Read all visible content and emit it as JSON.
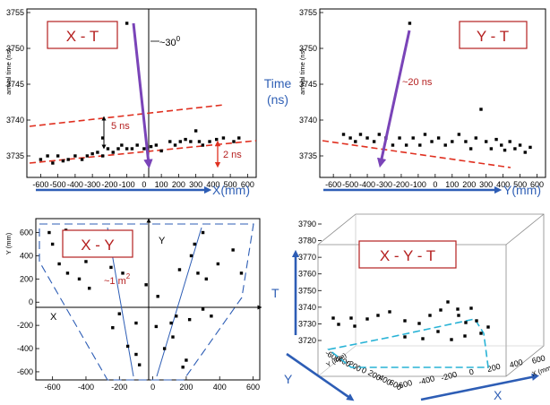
{
  "chart_data": [
    {
      "type": "scatter",
      "panel": "X - T",
      "xlim": [
        -680,
        650
      ],
      "ylim": [
        3732,
        3755.5
      ],
      "xticks": [
        "-600",
        "-500",
        "-400",
        "-300",
        "-200",
        "-100",
        "0",
        "100",
        "200",
        "300",
        "400",
        "500",
        "600"
      ],
      "yticks": [
        "3735",
        "3740",
        "3745",
        "3750",
        "3755"
      ],
      "ylabel": "arrival time (ns)",
      "axis_label": "X(mm)",
      "box_label": "X - T",
      "angle_label": "~30",
      "angle_sup": "0",
      "width_label": "5 ns",
      "offset_label": "2 ns",
      "points": [
        [
          -100,
          3753.5
        ],
        [
          -600,
          3734.5
        ],
        [
          -560,
          3735
        ],
        [
          -530,
          3734
        ],
        [
          -500,
          3735
        ],
        [
          -470,
          3734.3
        ],
        [
          -440,
          3734.5
        ],
        [
          -400,
          3735
        ],
        [
          -360,
          3734.5
        ],
        [
          -330,
          3735
        ],
        [
          -300,
          3735.3
        ],
        [
          -270,
          3735.5
        ],
        [
          -240,
          3735
        ],
        [
          -210,
          3736
        ],
        [
          -180,
          3735.5
        ],
        [
          -150,
          3736
        ],
        [
          -130,
          3736.5
        ],
        [
          -100,
          3736
        ],
        [
          -70,
          3736
        ],
        [
          -40,
          3736.5
        ],
        [
          0,
          3736
        ],
        [
          40,
          3736.3
        ],
        [
          70,
          3736.5
        ],
        [
          100,
          3735.7
        ],
        [
          150,
          3737
        ],
        [
          180,
          3736.5
        ],
        [
          210,
          3737
        ],
        [
          240,
          3737.3
        ],
        [
          270,
          3737
        ],
        [
          300,
          3738.5
        ],
        [
          320,
          3737
        ],
        [
          340,
          3736.5
        ],
        [
          380,
          3737
        ],
        [
          420,
          3737.3
        ],
        [
          460,
          3737.5
        ],
        [
          520,
          3737
        ],
        [
          550,
          3737.5
        ],
        [
          -240,
          3737.5
        ]
      ]
    },
    {
      "type": "scatter",
      "panel": "Y - T",
      "xlim": [
        -680,
        650
      ],
      "ylim": [
        3732,
        3755.5
      ],
      "xticks": [
        "-600",
        "-500",
        "-400",
        "-300",
        "-200",
        "-100",
        "0",
        "100",
        "200",
        "300",
        "400",
        "500",
        "600"
      ],
      "yticks": [
        "3735",
        "3740",
        "3745",
        "3750",
        "3755"
      ],
      "ylabel": "arrival time (ns)",
      "axis_label": "Y(mm)",
      "box_label": "Y - T",
      "time_label": "~20 ns",
      "points": [
        [
          -150,
          3753.5
        ],
        [
          -540,
          3738
        ],
        [
          -500,
          3737.5
        ],
        [
          -470,
          3737
        ],
        [
          -440,
          3738
        ],
        [
          -400,
          3737.5
        ],
        [
          -360,
          3737
        ],
        [
          -330,
          3738
        ],
        [
          -290,
          3737.5
        ],
        [
          -250,
          3736.5
        ],
        [
          -210,
          3737.5
        ],
        [
          -170,
          3736.5
        ],
        [
          -130,
          3737.5
        ],
        [
          -90,
          3736.5
        ],
        [
          -60,
          3738
        ],
        [
          -20,
          3737
        ],
        [
          20,
          3737.5
        ],
        [
          60,
          3736.5
        ],
        [
          100,
          3737
        ],
        [
          140,
          3738
        ],
        [
          180,
          3737
        ],
        [
          210,
          3736
        ],
        [
          240,
          3737.5
        ],
        [
          270,
          3741.5
        ],
        [
          300,
          3737
        ],
        [
          330,
          3736
        ],
        [
          360,
          3737.3
        ],
        [
          390,
          3736.5
        ],
        [
          410,
          3735.8
        ],
        [
          440,
          3737
        ],
        [
          470,
          3736
        ],
        [
          500,
          3736.5
        ],
        [
          530,
          3735.5
        ],
        [
          560,
          3736.2
        ]
      ]
    },
    {
      "type": "scatter",
      "panel": "X - Y",
      "xlim": [
        -700,
        640
      ],
      "ylim": [
        -670,
        720
      ],
      "xticks": [
        "-600",
        "-400",
        "-200",
        "0",
        "200",
        "400",
        "600"
      ],
      "yticks": [
        "600",
        "400",
        "200",
        "0",
        "-200",
        "-400",
        "-600"
      ],
      "ylabel": "Y (mm)",
      "box_label": "X - Y",
      "area_label": "~1 m",
      "area_sup": "2",
      "x_axis_name": "X",
      "y_axis_name": "Y",
      "points": [
        [
          -620,
          600
        ],
        [
          -520,
          620
        ],
        [
          -600,
          500
        ],
        [
          -560,
          330
        ],
        [
          -510,
          250
        ],
        [
          -440,
          200
        ],
        [
          -400,
          350
        ],
        [
          -380,
          120
        ],
        [
          -280,
          400
        ],
        [
          -250,
          300
        ],
        [
          -180,
          550
        ],
        [
          -150,
          450
        ],
        [
          -180,
          250
        ],
        [
          -200,
          -100
        ],
        [
          -240,
          -220
        ],
        [
          -100,
          -180
        ],
        [
          -150,
          -380
        ],
        [
          -100,
          -450
        ],
        [
          -80,
          -540
        ],
        [
          -40,
          150
        ],
        [
          20,
          -210
        ],
        [
          30,
          50
        ],
        [
          70,
          -400
        ],
        [
          110,
          -180
        ],
        [
          160,
          280
        ],
        [
          140,
          -120
        ],
        [
          120,
          -300
        ],
        [
          180,
          -560
        ],
        [
          200,
          -500
        ],
        [
          250,
          500
        ],
        [
          230,
          400
        ],
        [
          220,
          -150
        ],
        [
          270,
          250
        ],
        [
          300,
          600
        ],
        [
          300,
          -60
        ],
        [
          320,
          200
        ],
        [
          350,
          -120
        ],
        [
          390,
          330
        ],
        [
          480,
          450
        ],
        [
          530,
          250
        ]
      ]
    },
    {
      "type": "scatter",
      "panel": "X - Y - T",
      "zlim": [
        3720,
        3790
      ],
      "zticks": [
        "3790",
        "3780",
        "3770",
        "3760",
        "3750",
        "3740",
        "3730",
        "3720"
      ],
      "xticks": [
        "-600",
        "-400",
        "-200",
        "0",
        "200",
        "400",
        "600"
      ],
      "yticks": [
        "-600",
        "-400",
        "-200",
        "0",
        "200",
        "400",
        "600"
      ],
      "ylabel_small": "Y (mm)",
      "xlabel_small": "X (mm)",
      "box_label": "X - Y - T",
      "axis_t": "T",
      "axis_y": "Y",
      "axis_x": "X"
    }
  ],
  "labels": {
    "time_axis": "Time",
    "time_unit": "(ns)"
  },
  "colors": {
    "purple": "#7a44b8",
    "red_dash": "#e03020",
    "blue": "#2d5db5",
    "cyan": "#29b3d6",
    "label_red": "#b52020"
  }
}
